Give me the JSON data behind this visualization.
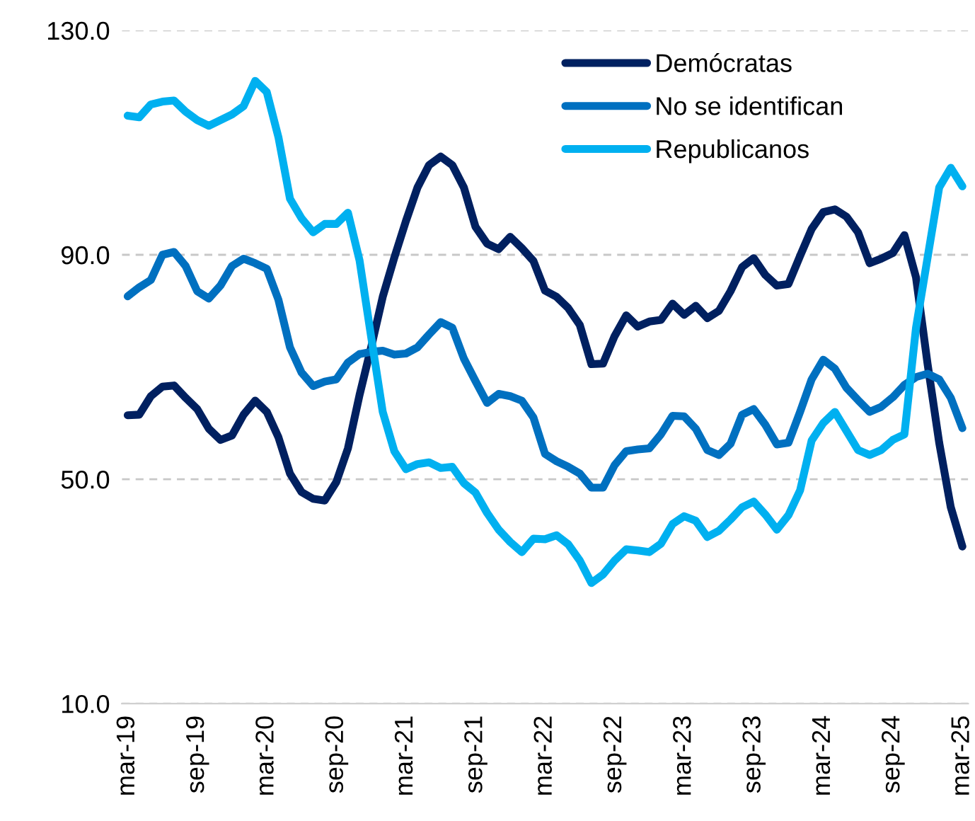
{
  "chart_data": {
    "type": "line",
    "categories": [
      "mar-19",
      null,
      null,
      null,
      null,
      null,
      "sep-19",
      null,
      null,
      null,
      null,
      null,
      "mar-20",
      null,
      null,
      null,
      null,
      null,
      "sep-20",
      null,
      null,
      null,
      null,
      null,
      "mar-21",
      null,
      null,
      null,
      null,
      null,
      "sep-21",
      null,
      null,
      null,
      null,
      null,
      "mar-22",
      null,
      null,
      null,
      null,
      null,
      "sep-22",
      null,
      null,
      null,
      null,
      null,
      "mar-23",
      null,
      null,
      null,
      null,
      null,
      "sep-23",
      null,
      null,
      null,
      null,
      null,
      "mar-24",
      null,
      null,
      null,
      null,
      null,
      "sep-24",
      null,
      null,
      null,
      null,
      null,
      "mar-25"
    ],
    "series": [
      {
        "name": "Demócratas",
        "color": "#002060",
        "values": [
          61.4,
          61.5,
          64.8,
          66.5,
          66.7,
          64.5,
          62.5,
          59.0,
          57.0,
          57.8,
          61.5,
          64.0,
          62.0,
          57.5,
          51.0,
          47.7,
          46.5,
          46.2,
          49.5,
          55.5,
          65.0,
          73.5,
          82.5,
          89.5,
          96.0,
          102.0,
          106.0,
          107.5,
          106.0,
          102.0,
          95.0,
          92.0,
          91.0,
          93.2,
          91.2,
          88.9,
          83.6,
          82.5,
          80.5,
          77.5,
          70.5,
          70.6,
          75.5,
          79.2,
          77.2,
          78.1,
          78.4,
          81.3,
          79.3,
          80.9,
          78.7,
          80.0,
          83.5,
          87.8,
          89.4,
          86.4,
          84.5,
          84.8,
          89.8,
          94.6,
          97.6,
          98.1,
          96.8,
          94.0,
          88.5,
          89.3,
          90.3,
          93.5,
          86.0,
          70.5,
          56.5,
          45.0,
          38.0
        ]
      },
      {
        "name": "No se identifican",
        "color": "#0070c0",
        "values": [
          82.6,
          84.2,
          85.5,
          90.0,
          90.5,
          88.0,
          83.5,
          82.2,
          84.5,
          88.0,
          89.3,
          88.5,
          87.5,
          82.0,
          73.5,
          69.0,
          66.6,
          67.4,
          67.8,
          70.8,
          72.3,
          72.7,
          72.9,
          72.2,
          72.4,
          73.5,
          75.8,
          78.0,
          77.0,
          71.5,
          67.5,
          63.6,
          65.2,
          64.8,
          64.0,
          61.0,
          54.5,
          53.2,
          52.2,
          51.0,
          48.5,
          48.5,
          52.5,
          55.0,
          55.3,
          55.5,
          58.0,
          61.3,
          61.2,
          59.0,
          55.2,
          54.3,
          56.3,
          61.5,
          62.5,
          59.7,
          56.2,
          56.5,
          62.0,
          67.8,
          71.3,
          69.7,
          66.3,
          64.1,
          62.0,
          62.9,
          64.6,
          66.8,
          68.2,
          68.8,
          67.8,
          64.5,
          59.1
        ]
      },
      {
        "name": "Republicanos",
        "color": "#00b0f0",
        "values": [
          114.8,
          114.5,
          116.8,
          117.3,
          117.5,
          115.5,
          114.0,
          113.0,
          114.0,
          115.0,
          116.5,
          121.0,
          119.0,
          111.0,
          100.0,
          96.5,
          94.0,
          95.5,
          95.5,
          97.5,
          89.0,
          75.4,
          62.0,
          55.0,
          51.8,
          52.7,
          53.0,
          52.0,
          52.2,
          49.3,
          47.6,
          44.0,
          41.0,
          38.8,
          37.0,
          39.4,
          39.3,
          40.0,
          38.4,
          35.5,
          31.5,
          33.0,
          35.5,
          37.5,
          37.3,
          37.0,
          38.5,
          42.0,
          43.4,
          42.6,
          39.7,
          40.8,
          42.8,
          45.0,
          46.0,
          43.7,
          41.0,
          43.6,
          48.0,
          56.9,
          60.0,
          62.0,
          58.6,
          55.2,
          54.3,
          55.2,
          57.0,
          58.0,
          77.0,
          89.5,
          102.0,
          105.5,
          102.2
        ]
      }
    ],
    "ylim": [
      10,
      130
    ],
    "yticks": [
      {
        "value": 10,
        "label": "10.0"
      },
      {
        "value": 50,
        "label": "50.0"
      },
      {
        "value": 90,
        "label": "90.0"
      },
      {
        "value": 130,
        "label": "130.0"
      }
    ],
    "grid": "y",
    "legend": "top right",
    "marker": "none",
    "line_style": "solid"
  }
}
